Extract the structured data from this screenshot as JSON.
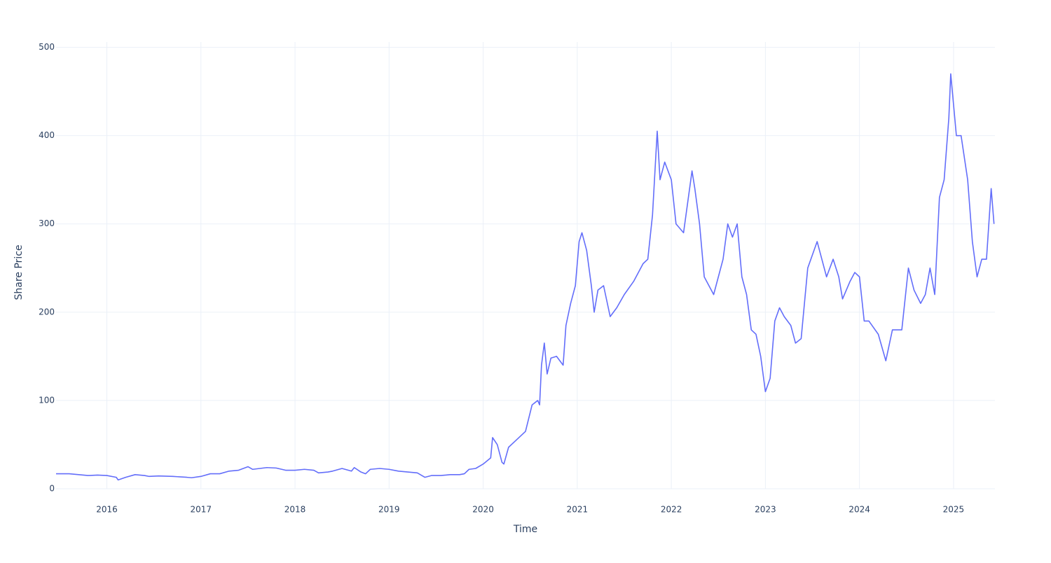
{
  "chart_data": {
    "type": "line",
    "x_label": "Time",
    "y_label": "Share Price",
    "color": "#636efa",
    "grid": true,
    "xlim": [
      2015.46,
      2025.44
    ],
    "xticks": [
      2016,
      2017,
      2018,
      2019,
      2020,
      2021,
      2022,
      2023,
      2024,
      2025
    ],
    "ylim": [
      0,
      506
    ],
    "yticks": [
      0,
      100,
      200,
      300,
      400,
      500
    ],
    "x": [
      2015.46,
      2015.6,
      2015.7,
      2015.8,
      2015.9,
      2016.0,
      2016.1,
      2016.12,
      2016.2,
      2016.3,
      2016.4,
      2016.45,
      2016.55,
      2016.7,
      2016.85,
      2016.9,
      2017.0,
      2017.1,
      2017.2,
      2017.3,
      2017.4,
      2017.5,
      2017.55,
      2017.7,
      2017.8,
      2017.9,
      2018.0,
      2018.1,
      2018.2,
      2018.25,
      2018.35,
      2018.4,
      2018.5,
      2018.6,
      2018.63,
      2018.7,
      2018.75,
      2018.8,
      2018.9,
      2019.0,
      2019.1,
      2019.2,
      2019.3,
      2019.38,
      2019.45,
      2019.55,
      2019.65,
      2019.75,
      2019.8,
      2019.85,
      2019.92,
      2020.0,
      2020.08,
      2020.1,
      2020.15,
      2020.2,
      2020.22,
      2020.27,
      2020.35,
      2020.45,
      2020.52,
      2020.58,
      2020.6,
      2020.62,
      2020.65,
      2020.68,
      2020.72,
      2020.78,
      2020.85,
      2020.88,
      2020.93,
      2020.98,
      2021.02,
      2021.05,
      2021.1,
      2021.15,
      2021.18,
      2021.22,
      2021.28,
      2021.35,
      2021.42,
      2021.5,
      2021.6,
      2021.7,
      2021.75,
      2021.8,
      2021.85,
      2021.88,
      2021.93,
      2022.0,
      2022.05,
      2022.13,
      2022.22,
      2022.25,
      2022.3,
      2022.35,
      2022.4,
      2022.45,
      2022.55,
      2022.6,
      2022.65,
      2022.7,
      2022.75,
      2022.8,
      2022.85,
      2022.9,
      2022.95,
      2023.0,
      2023.05,
      2023.1,
      2023.15,
      2023.2,
      2023.27,
      2023.32,
      2023.38,
      2023.45,
      2023.55,
      2023.6,
      2023.65,
      2023.72,
      2023.78,
      2023.82,
      2023.9,
      2023.95,
      2024.0,
      2024.05,
      2024.1,
      2024.2,
      2024.28,
      2024.35,
      2024.45,
      2024.52,
      2024.58,
      2024.65,
      2024.7,
      2024.75,
      2024.8,
      2024.85,
      2024.9,
      2024.95,
      2024.97,
      2025.03,
      2025.08,
      2025.15,
      2025.2,
      2025.25,
      2025.3,
      2025.35,
      2025.4,
      2025.43
    ],
    "values": [
      17,
      17,
      16,
      15,
      15.5,
      15,
      13,
      10,
      13,
      16,
      15,
      14,
      14.5,
      14,
      13,
      12.5,
      14,
      17,
      17,
      20,
      21,
      25,
      22,
      24,
      23.5,
      21,
      21,
      22,
      21,
      18,
      19,
      20,
      23,
      20,
      24,
      19,
      17,
      22,
      23,
      22,
      20,
      19,
      18,
      13,
      15,
      15,
      16,
      16,
      17,
      22,
      23,
      28,
      35,
      58,
      50,
      30,
      28,
      47,
      55,
      65,
      95,
      100,
      95,
      140,
      165,
      130,
      148,
      150,
      140,
      185,
      210,
      230,
      280,
      290,
      270,
      230,
      200,
      225,
      230,
      195,
      205,
      220,
      235,
      255,
      260,
      310,
      405,
      350,
      370,
      350,
      300,
      290,
      360,
      340,
      300,
      240,
      230,
      220,
      260,
      300,
      285,
      300,
      240,
      220,
      180,
      175,
      150,
      110,
      125,
      190,
      205,
      195,
      185,
      165,
      170,
      250,
      280,
      260,
      240,
      260,
      240,
      215,
      235,
      245,
      240,
      190,
      190,
      175,
      145,
      180,
      180,
      250,
      225,
      210,
      220,
      250,
      220,
      330,
      350,
      420,
      470,
      400,
      400,
      350,
      280,
      240,
      260,
      260,
      340,
      300
    ]
  }
}
